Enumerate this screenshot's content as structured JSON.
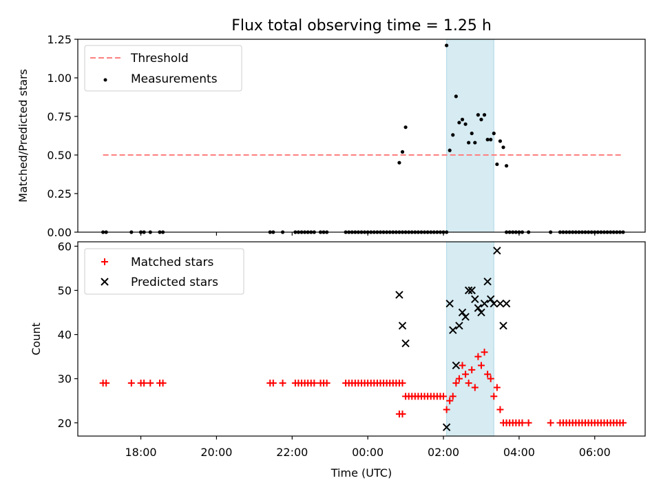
{
  "figure": {
    "title": "Flux total observing time = 1.25 h",
    "xlabel": "Time (UTC)",
    "x_ticks": [
      "18:00",
      "20:00",
      "22:00",
      "00:00",
      "02:00",
      "04:00",
      "06:00"
    ]
  },
  "chart_data": [
    {
      "type": "scatter",
      "ylabel": "Matched/Predicted stars",
      "ylim": [
        0,
        1.25
      ],
      "y_ticks": [
        "0.00",
        "0.25",
        "0.50",
        "0.75",
        "1.00",
        "1.25"
      ],
      "legend": {
        "placement": "top-left",
        "entries": [
          "Threshold",
          "Measurements"
        ]
      },
      "series": [
        {
          "name": "Threshold",
          "kind": "dashed-line",
          "color": "#ff7f7f",
          "x": [
            "17:00",
            "06:45"
          ],
          "y": [
            0.5,
            0.5
          ]
        },
        {
          "name": "Measurements",
          "kind": "dot",
          "color": "#000000",
          "x": [
            "17:00",
            "17:05",
            "17:45",
            "18:00",
            "18:05",
            "18:15",
            "18:30",
            "18:35",
            "21:25",
            "21:30",
            "21:45",
            "22:05",
            "22:10",
            "22:15",
            "22:20",
            "22:25",
            "22:30",
            "22:35",
            "22:45",
            "22:50",
            "22:55",
            "23:25",
            "23:30",
            "23:35",
            "23:40",
            "23:45",
            "23:50",
            "23:55",
            "00:00",
            "00:05",
            "00:10",
            "00:15",
            "00:20",
            "00:25",
            "00:30",
            "00:35",
            "00:40",
            "00:45",
            "00:50",
            "00:55",
            "01:00",
            "01:05",
            "01:10",
            "01:15",
            "01:20",
            "01:25",
            "01:30",
            "01:35",
            "01:40",
            "01:45",
            "01:50",
            "01:55",
            "02:00",
            "02:05",
            "03:40",
            "03:45",
            "03:50",
            "03:55",
            "04:00",
            "04:05",
            "04:15",
            "04:50",
            "05:05",
            "05:10",
            "05:15",
            "05:20",
            "05:25",
            "05:30",
            "05:35",
            "05:40",
            "05:45",
            "05:50",
            "05:55",
            "06:00",
            "06:05",
            "06:10",
            "06:15",
            "06:20",
            "06:25",
            "06:30",
            "06:35",
            "06:40",
            "06:45",
            "00:50",
            "00:55",
            "01:00",
            "02:05",
            "02:10",
            "02:15",
            "02:20",
            "02:25",
            "02:30",
            "02:35",
            "02:40",
            "02:45",
            "02:50",
            "02:55",
            "03:00",
            "03:05",
            "03:10",
            "03:15",
            "03:20",
            "03:25",
            "03:30",
            "03:35",
            "03:40"
          ],
          "y": [
            0,
            0,
            0,
            0,
            0,
            0,
            0,
            0,
            0,
            0,
            0,
            0,
            0,
            0,
            0,
            0,
            0,
            0,
            0,
            0,
            0,
            0,
            0,
            0,
            0,
            0,
            0,
            0,
            0,
            0,
            0,
            0,
            0,
            0,
            0,
            0,
            0,
            0,
            0,
            0,
            0,
            0,
            0,
            0,
            0,
            0,
            0,
            0,
            0,
            0,
            0,
            0,
            0,
            0,
            0,
            0,
            0,
            0,
            0,
            0,
            0,
            0,
            0,
            0,
            0,
            0,
            0,
            0,
            0,
            0,
            0,
            0,
            0,
            0,
            0,
            0,
            0,
            0,
            0,
            0,
            0,
            0,
            0,
            0.45,
            0.52,
            0.68,
            1.21,
            0.53,
            0.63,
            0.88,
            0.71,
            0.73,
            0.7,
            0.58,
            0.64,
            0.58,
            0.76,
            0.73,
            0.76,
            0.6,
            0.6,
            0.64,
            0.44,
            0.59,
            0.55,
            0.43
          ]
        }
      ]
    },
    {
      "type": "scatter",
      "ylabel": "Count",
      "ylim": [
        17,
        61
      ],
      "y_ticks": [
        "20",
        "30",
        "40",
        "50",
        "60"
      ],
      "legend": {
        "placement": "top-left",
        "entries": [
          "Matched stars",
          "Predicted stars"
        ]
      },
      "series": [
        {
          "name": "Matched stars",
          "kind": "plus",
          "color": "#ff0000",
          "x": [
            "17:00",
            "17:05",
            "17:45",
            "18:00",
            "18:05",
            "18:15",
            "18:30",
            "18:35",
            "21:25",
            "21:30",
            "21:45",
            "22:05",
            "22:10",
            "22:15",
            "22:20",
            "22:25",
            "22:30",
            "22:35",
            "22:45",
            "22:50",
            "22:55",
            "23:25",
            "23:30",
            "23:35",
            "23:40",
            "23:45",
            "23:50",
            "23:55",
            "00:00",
            "00:05",
            "00:10",
            "00:15",
            "00:20",
            "00:25",
            "00:30",
            "00:35",
            "00:40",
            "00:45",
            "00:50",
            "00:55",
            "00:50",
            "00:55",
            "01:00",
            "01:05",
            "01:10",
            "01:15",
            "01:20",
            "01:25",
            "01:30",
            "01:35",
            "01:40",
            "01:45",
            "01:50",
            "01:55",
            "02:00",
            "02:05",
            "02:10",
            "02:15",
            "02:20",
            "02:25",
            "02:30",
            "02:35",
            "02:40",
            "02:45",
            "02:50",
            "02:55",
            "03:00",
            "03:05",
            "03:10",
            "03:15",
            "03:20",
            "03:25",
            "03:30",
            "03:35",
            "03:40",
            "03:45",
            "03:50",
            "03:55",
            "04:00",
            "04:05",
            "04:15",
            "04:50",
            "05:05",
            "05:10",
            "05:15",
            "05:20",
            "05:25",
            "05:30",
            "05:35",
            "05:40",
            "05:45",
            "05:50",
            "05:55",
            "06:00",
            "06:05",
            "06:10",
            "06:15",
            "06:20",
            "06:25",
            "06:30",
            "06:35",
            "06:40",
            "06:45"
          ],
          "y": [
            29,
            29,
            29,
            29,
            29,
            29,
            29,
            29,
            29,
            29,
            29,
            29,
            29,
            29,
            29,
            29,
            29,
            29,
            29,
            29,
            29,
            29,
            29,
            29,
            29,
            29,
            29,
            29,
            29,
            29,
            29,
            29,
            29,
            29,
            29,
            29,
            29,
            29,
            29,
            29,
            22,
            22,
            26,
            26,
            26,
            26,
            26,
            26,
            26,
            26,
            26,
            26,
            26,
            26,
            26,
            23,
            25,
            26,
            29,
            30,
            33,
            31,
            29,
            32,
            28,
            35,
            33,
            36,
            31,
            30,
            26,
            28,
            23,
            20,
            20,
            20,
            20,
            20,
            20,
            20,
            20,
            20,
            20,
            20,
            20,
            20,
            20,
            20,
            20,
            20,
            20,
            20,
            20,
            20,
            20,
            20,
            20,
            20,
            20,
            20,
            20,
            20,
            20
          ]
        },
        {
          "name": "Predicted stars",
          "kind": "x",
          "color": "#000000",
          "x": [
            "00:50",
            "00:55",
            "01:00",
            "02:05",
            "02:10",
            "02:15",
            "02:20",
            "02:25",
            "02:30",
            "02:35",
            "02:40",
            "02:45",
            "02:50",
            "02:55",
            "03:00",
            "03:05",
            "03:10",
            "03:15",
            "03:20",
            "03:25",
            "03:30",
            "03:35",
            "03:40"
          ],
          "y": [
            49,
            42,
            38,
            19,
            47,
            41,
            33,
            42,
            45,
            44,
            50,
            50,
            48,
            46,
            45,
            47,
            52,
            48,
            47,
            59,
            47,
            42,
            47
          ]
        }
      ]
    }
  ],
  "highlight_span": {
    "start": "02:05",
    "end": "03:20",
    "color": "#add8e6"
  }
}
